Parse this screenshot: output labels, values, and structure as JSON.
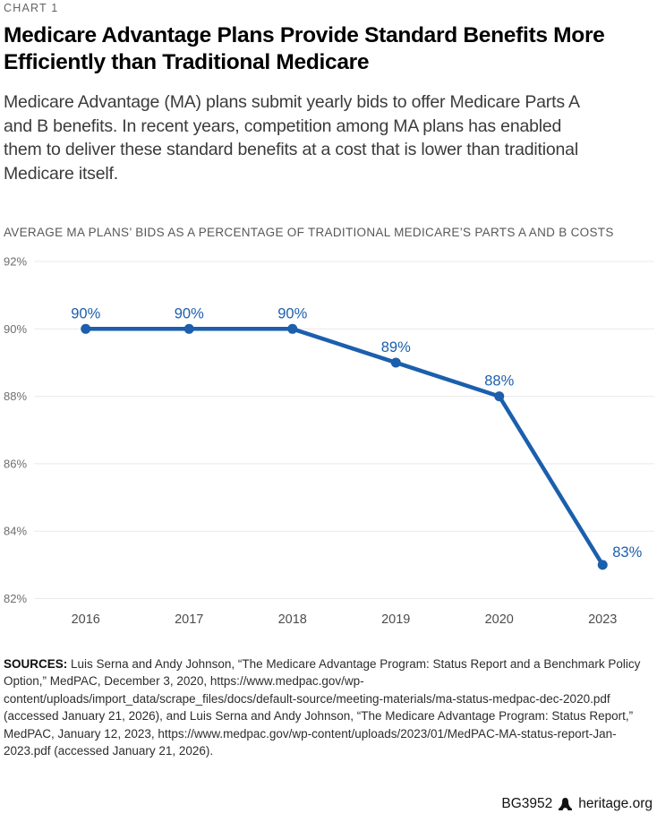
{
  "header": {
    "chart_label": "CHART 1",
    "title": "Medicare Advantage Plans Provide Standard Benefits More Efficiently than Traditional Medicare",
    "intro": "Medicare Advantage (MA) plans submit yearly bids to offer Medicare Parts A and B benefits. In recent years, competition among MA plans has enabled them to deliver these standard benefits at a cost that is lower than traditional Medicare itself."
  },
  "chart_data": {
    "type": "line",
    "title": "AVERAGE MA PLANS’ BIDS AS A PERCENTAGE OF TRADITIONAL MEDICARE’S PARTS A AND B COSTS",
    "categories": [
      "2016",
      "2017",
      "2018",
      "2019",
      "2020",
      "2023"
    ],
    "values": [
      90,
      90,
      90,
      89,
      88,
      83
    ],
    "point_labels": [
      "90%",
      "90%",
      "90%",
      "89%",
      "88%",
      "83%"
    ],
    "ylim": [
      82,
      92
    ],
    "yticks": [
      {
        "value": 92,
        "label": "92%"
      },
      {
        "value": 90,
        "label": "90%"
      },
      {
        "value": 88,
        "label": "88%"
      },
      {
        "value": 86,
        "label": "86%"
      },
      {
        "value": 84,
        "label": "84%"
      },
      {
        "value": 82,
        "label": "82%"
      }
    ],
    "grid": true,
    "legend": false,
    "xlabel": "",
    "ylabel": "",
    "colors": {
      "line": "#1b5fad",
      "data_label": "#1b5fad",
      "gridline": "#e9e9e9",
      "axis_label": "#6e6e6e",
      "tick_label": "#4d4d4d"
    }
  },
  "sources": {
    "label": "SOURCES:",
    "text": "Luis Serna and Andy Johnson, “The Medicare Advantage Program: Status Report and a Benchmark Policy Option,” MedPAC, December 3, 2020, https://www.medpac.gov/wp-content/uploads/import_data/scrape_files/docs/default-source/meeting-materials/ma-status-medpac-dec-2020.pdf (accessed January 21, 2026), and Luis Serna and Andy Johnson, “The Medicare Advantage Program: Status Report,” MedPAC, January 12, 2023, https://www.medpac.gov/wp-content/uploads/2023/01/MedPAC-MA-status-report-Jan-2023.pdf (accessed January 21, 2026)."
  },
  "footer": {
    "report_id": "BG3952",
    "site": "heritage.org",
    "logo_icon": "liberty-bell-icon"
  }
}
